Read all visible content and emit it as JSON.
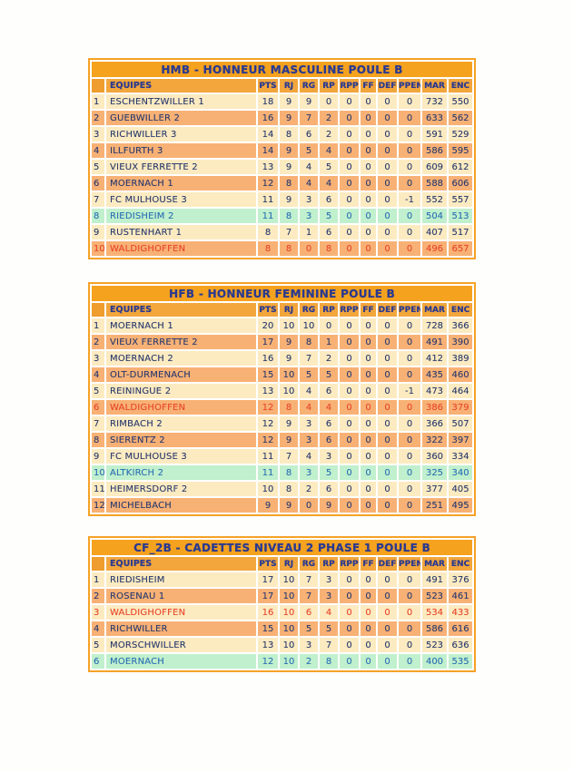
{
  "colors": {
    "title_bar": "#F5A21F",
    "header_cell": "#F2A63C",
    "corner_cell": "#EF9D2E",
    "border": "#F5A226",
    "row_cream": "#FCEBC1",
    "row_orange": "#F8B175",
    "row_green": "#C0F0CD",
    "text_title": "#2B3A8F",
    "text_navy": "#2A3B6E",
    "text_blue": "#2C70B5",
    "text_red": "#E8472A"
  },
  "columns": [
    "EQUIPES",
    "PTS",
    "RJ",
    "RG",
    "RP",
    "RPP",
    "FF",
    "DEF",
    "PPEN",
    "MAR",
    "ENC"
  ],
  "tables": [
    {
      "title": "HMB - HONNEUR MASCULINE POULE B",
      "rows": [
        {
          "pos": "1",
          "team": "ESCHENTZWILLER 1",
          "stats": [
            "18",
            "9",
            "9",
            "0",
            "0",
            "0",
            "0",
            "0",
            "732",
            "550"
          ],
          "highlight": "cream",
          "text": "navy"
        },
        {
          "pos": "2",
          "team": "GUEBWILLER 2",
          "stats": [
            "16",
            "9",
            "7",
            "2",
            "0",
            "0",
            "0",
            "0",
            "633",
            "562"
          ],
          "highlight": "orange",
          "text": "navy"
        },
        {
          "pos": "3",
          "team": "RICHWILLER 3",
          "stats": [
            "14",
            "8",
            "6",
            "2",
            "0",
            "0",
            "0",
            "0",
            "591",
            "529"
          ],
          "highlight": "cream",
          "text": "navy"
        },
        {
          "pos": "4",
          "team": "ILLFURTH 3",
          "stats": [
            "14",
            "9",
            "5",
            "4",
            "0",
            "0",
            "0",
            "0",
            "586",
            "595"
          ],
          "highlight": "orange",
          "text": "navy"
        },
        {
          "pos": "5",
          "team": "VIEUX FERRETTE 2",
          "stats": [
            "13",
            "9",
            "4",
            "5",
            "0",
            "0",
            "0",
            "0",
            "609",
            "612"
          ],
          "highlight": "cream",
          "text": "navy"
        },
        {
          "pos": "6",
          "team": "MOERNACH 1",
          "stats": [
            "12",
            "8",
            "4",
            "4",
            "0",
            "0",
            "0",
            "0",
            "588",
            "606"
          ],
          "highlight": "orange",
          "text": "navy"
        },
        {
          "pos": "7",
          "team": "FC MULHOUSE 3",
          "stats": [
            "11",
            "9",
            "3",
            "6",
            "0",
            "0",
            "0",
            "-1",
            "552",
            "557"
          ],
          "highlight": "cream",
          "text": "navy"
        },
        {
          "pos": "8",
          "team": "RIEDISHEIM 2",
          "stats": [
            "11",
            "8",
            "3",
            "5",
            "0",
            "0",
            "0",
            "0",
            "504",
            "513"
          ],
          "highlight": "green",
          "text": "blue"
        },
        {
          "pos": "9",
          "team": "RUSTENHART 1",
          "stats": [
            "8",
            "7",
            "1",
            "6",
            "0",
            "0",
            "0",
            "0",
            "407",
            "517"
          ],
          "highlight": "cream",
          "text": "navy"
        },
        {
          "pos": "10",
          "team": "WALDIGHOFFEN",
          "stats": [
            "8",
            "8",
            "0",
            "8",
            "0",
            "0",
            "0",
            "0",
            "496",
            "657"
          ],
          "highlight": "orange",
          "text": "red"
        }
      ]
    },
    {
      "title": "HFB - HONNEUR FEMININE POULE B",
      "rows": [
        {
          "pos": "1",
          "team": "MOERNACH 1",
          "stats": [
            "20",
            "10",
            "10",
            "0",
            "0",
            "0",
            "0",
            "0",
            "728",
            "366"
          ],
          "highlight": "cream",
          "text": "navy"
        },
        {
          "pos": "2",
          "team": "VIEUX FERRETTE 2",
          "stats": [
            "17",
            "9",
            "8",
            "1",
            "0",
            "0",
            "0",
            "0",
            "491",
            "390"
          ],
          "highlight": "orange",
          "text": "navy"
        },
        {
          "pos": "3",
          "team": "MOERNACH 2",
          "stats": [
            "16",
            "9",
            "7",
            "2",
            "0",
            "0",
            "0",
            "0",
            "412",
            "389"
          ],
          "highlight": "cream",
          "text": "navy"
        },
        {
          "pos": "4",
          "team": "OLT-DURMENACH",
          "stats": [
            "15",
            "10",
            "5",
            "5",
            "0",
            "0",
            "0",
            "0",
            "435",
            "460"
          ],
          "highlight": "orange",
          "text": "navy"
        },
        {
          "pos": "5",
          "team": "REININGUE 2",
          "stats": [
            "13",
            "10",
            "4",
            "6",
            "0",
            "0",
            "0",
            "-1",
            "473",
            "464"
          ],
          "highlight": "cream",
          "text": "navy"
        },
        {
          "pos": "6",
          "team": "WALDIGHOFFEN",
          "stats": [
            "12",
            "8",
            "4",
            "4",
            "0",
            "0",
            "0",
            "0",
            "386",
            "379"
          ],
          "highlight": "orange",
          "text": "red"
        },
        {
          "pos": "7",
          "team": "RIMBACH 2",
          "stats": [
            "12",
            "9",
            "3",
            "6",
            "0",
            "0",
            "0",
            "0",
            "366",
            "507"
          ],
          "highlight": "cream",
          "text": "navy"
        },
        {
          "pos": "8",
          "team": "SIERENTZ 2",
          "stats": [
            "12",
            "9",
            "3",
            "6",
            "0",
            "0",
            "0",
            "0",
            "322",
            "397"
          ],
          "highlight": "orange",
          "text": "navy"
        },
        {
          "pos": "9",
          "team": "FC MULHOUSE 3",
          "stats": [
            "11",
            "7",
            "4",
            "3",
            "0",
            "0",
            "0",
            "0",
            "360",
            "334"
          ],
          "highlight": "cream",
          "text": "navy"
        },
        {
          "pos": "10",
          "team": "ALTKIRCH 2",
          "stats": [
            "11",
            "8",
            "3",
            "5",
            "0",
            "0",
            "0",
            "0",
            "325",
            "340"
          ],
          "highlight": "green",
          "text": "blue"
        },
        {
          "pos": "11",
          "team": "HEIMERSDORF 2",
          "stats": [
            "10",
            "8",
            "2",
            "6",
            "0",
            "0",
            "0",
            "0",
            "377",
            "405"
          ],
          "highlight": "cream",
          "text": "navy"
        },
        {
          "pos": "12",
          "team": "MICHELBACH",
          "stats": [
            "9",
            "9",
            "0",
            "9",
            "0",
            "0",
            "0",
            "0",
            "251",
            "495"
          ],
          "highlight": "orange",
          "text": "navy"
        }
      ]
    },
    {
      "title": "CF_2B - CADETTES NIVEAU 2 PHASE 1 POULE B",
      "rows": [
        {
          "pos": "1",
          "team": "RIEDISHEIM",
          "stats": [
            "17",
            "10",
            "7",
            "3",
            "0",
            "0",
            "0",
            "0",
            "491",
            "376"
          ],
          "highlight": "cream",
          "text": "navy"
        },
        {
          "pos": "2",
          "team": "ROSENAU 1",
          "stats": [
            "17",
            "10",
            "7",
            "3",
            "0",
            "0",
            "0",
            "0",
            "523",
            "461"
          ],
          "highlight": "orange",
          "text": "navy"
        },
        {
          "pos": "3",
          "team": "WALDIGHOFFEN",
          "stats": [
            "16",
            "10",
            "6",
            "4",
            "0",
            "0",
            "0",
            "0",
            "534",
            "433"
          ],
          "highlight": "cream",
          "text": "red"
        },
        {
          "pos": "4",
          "team": "RICHWILLER",
          "stats": [
            "15",
            "10",
            "5",
            "5",
            "0",
            "0",
            "0",
            "0",
            "586",
            "616"
          ],
          "highlight": "orange",
          "text": "navy"
        },
        {
          "pos": "5",
          "team": "MORSCHWILLER",
          "stats": [
            "13",
            "10",
            "3",
            "7",
            "0",
            "0",
            "0",
            "0",
            "523",
            "636"
          ],
          "highlight": "cream",
          "text": "navy"
        },
        {
          "pos": "6",
          "team": "MOERNACH",
          "stats": [
            "12",
            "10",
            "2",
            "8",
            "0",
            "0",
            "0",
            "0",
            "400",
            "535"
          ],
          "highlight": "green",
          "text": "blue"
        }
      ]
    }
  ]
}
